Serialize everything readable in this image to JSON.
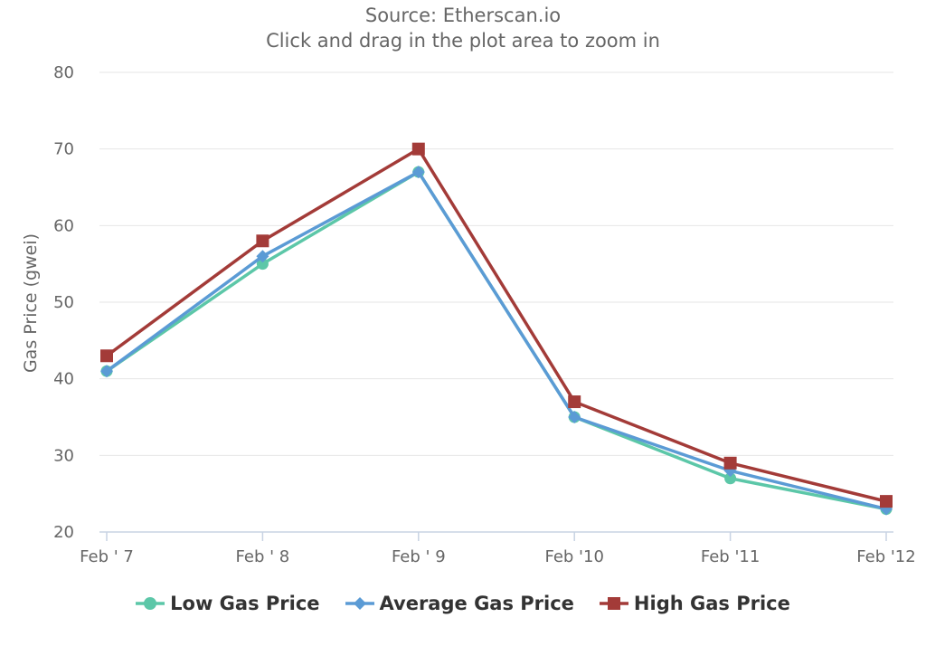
{
  "subtitle_lines": [
    "Source: Etherscan.io",
    "Click and drag in the plot area to zoom in"
  ],
  "chart_data": {
    "type": "line",
    "x": [
      "Feb ' 7",
      "Feb ' 8",
      "Feb ' 9",
      "Feb '10",
      "Feb '11",
      "Feb '12"
    ],
    "ylabel": "Gas Price (gwei)",
    "ylim": [
      20,
      80
    ],
    "yticks": [
      20,
      30,
      40,
      50,
      60,
      70,
      80
    ],
    "grid": true,
    "legend_position": "bottom",
    "series": [
      {
        "name": "Low Gas Price",
        "color": "#5cc7a8",
        "marker": "circle",
        "values": [
          41,
          55,
          67,
          35,
          27,
          23
        ]
      },
      {
        "name": "Average Gas Price",
        "color": "#5b9bd5",
        "marker": "diamond",
        "values": [
          41,
          56,
          67,
          35,
          28,
          23
        ]
      },
      {
        "name": "High Gas Price",
        "color": "#a33b38",
        "marker": "square",
        "values": [
          43,
          58,
          70,
          37,
          29,
          24
        ]
      }
    ]
  }
}
